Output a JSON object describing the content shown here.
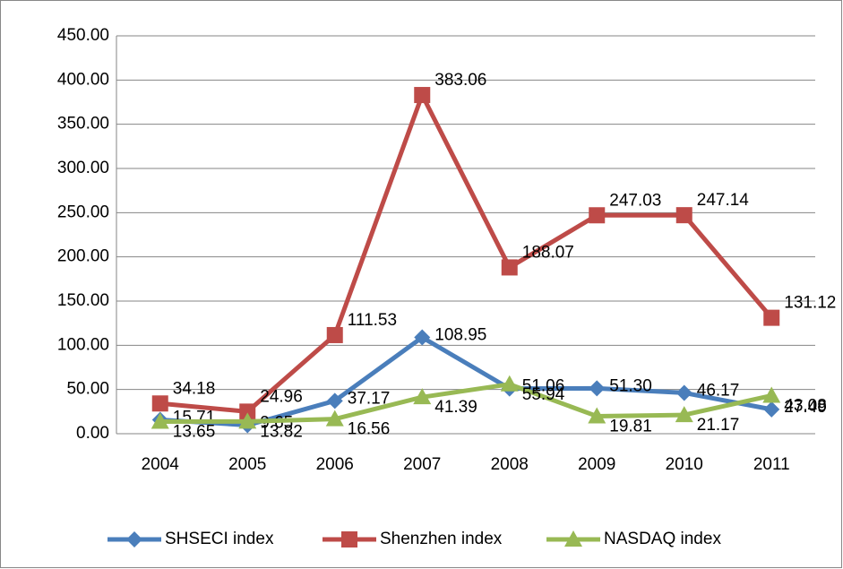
{
  "chart_data": {
    "type": "line",
    "categories": [
      "2004",
      "2005",
      "2006",
      "2007",
      "2008",
      "2009",
      "2010",
      "2011"
    ],
    "series": [
      {
        "name": "SHSECI index",
        "color": "#4a7ebb",
        "marker": "diamond",
        "values": [
          15.71,
          9.65,
          37.17,
          108.95,
          51.06,
          51.3,
          46.17,
          27.49
        ],
        "value_labels": [
          "15.71",
          "9.65",
          "37.17",
          "108.95",
          "51.06",
          "51.30",
          "46.17",
          "27.49"
        ]
      },
      {
        "name": "Shenzhen index",
        "color": "#be4b48",
        "marker": "square",
        "values": [
          34.18,
          24.96,
          111.53,
          383.06,
          188.07,
          247.03,
          247.14,
          131.12
        ],
        "value_labels": [
          "34.18",
          "24.96",
          "111.53",
          "383.06",
          "188.07",
          "247.03",
          "247.14",
          "131.12"
        ]
      },
      {
        "name": "NASDAQ index",
        "color": "#98b954",
        "marker": "triangle",
        "values": [
          13.65,
          13.82,
          16.56,
          41.39,
          55.94,
          19.81,
          21.17,
          43.08
        ],
        "value_labels": [
          "13.65",
          "13.82",
          "16.56",
          "41.39",
          "55.94",
          "19.81",
          "21.17",
          "43.08"
        ]
      }
    ],
    "ylim": [
      0,
      450
    ],
    "yticks": [
      {
        "value": 0,
        "label": "0.00"
      },
      {
        "value": 50,
        "label": "50.00"
      },
      {
        "value": 100,
        "label": "100.00"
      },
      {
        "value": 150,
        "label": "150.00"
      },
      {
        "value": 200,
        "label": "200.00"
      },
      {
        "value": 250,
        "label": "250.00"
      },
      {
        "value": 300,
        "label": "300.00"
      },
      {
        "value": 350,
        "label": "350.00"
      },
      {
        "value": 400,
        "label": "400.00"
      },
      {
        "value": 450,
        "label": "450.00"
      }
    ],
    "grid": true,
    "legend": "bottom"
  }
}
